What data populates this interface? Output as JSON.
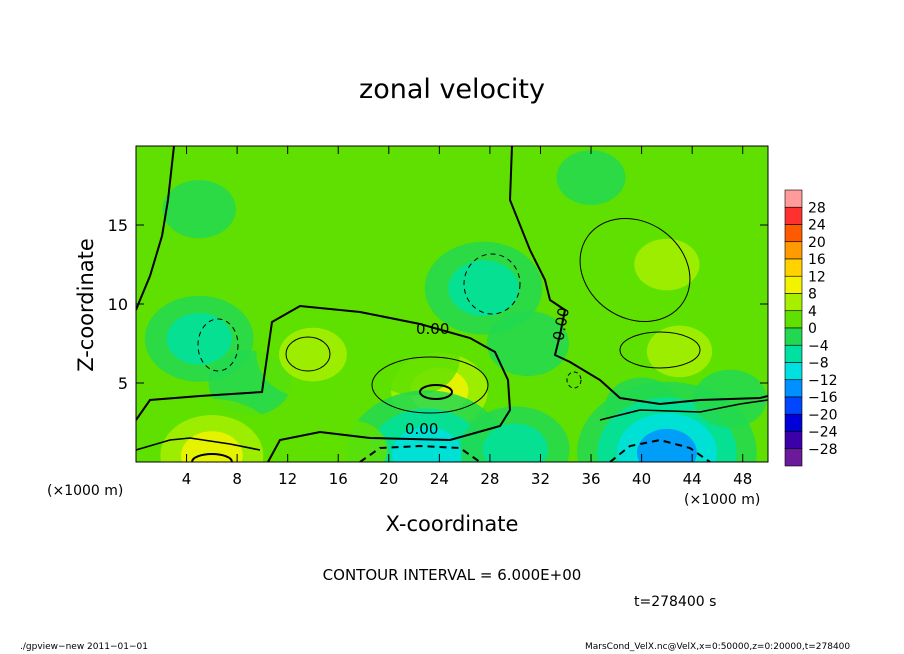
{
  "chart_data": {
    "type": "heatmap",
    "title": "zonal velocity",
    "xlabel": "X-coordinate",
    "ylabel": "Z-coordinate",
    "x_multiplier_left": "(×1000 m)",
    "x_multiplier_right": "(×1000 m)",
    "xlim": [
      0,
      50
    ],
    "ylim": [
      0,
      20
    ],
    "x_ticks": [
      "4",
      "8",
      "12",
      "16",
      "20",
      "24",
      "28",
      "32",
      "36",
      "40",
      "44",
      "48"
    ],
    "y_ticks": [
      "5",
      "10",
      "15"
    ],
    "colorbar_levels": [
      "28",
      "24",
      "20",
      "16",
      "12",
      "8",
      "4",
      "0",
      "−4",
      "−8",
      "−12",
      "−16",
      "−20",
      "−24",
      "−28"
    ],
    "colorbar_colors": [
      "#ff9b9b",
      "#ff3030",
      "#ff5a00",
      "#ff9a00",
      "#ffd200",
      "#f3f300",
      "#a8ee00",
      "#5fe000",
      "#22d850",
      "#00e0a0",
      "#00e0e0",
      "#0090ff",
      "#0046ff",
      "#0000d8",
      "#3c00a8",
      "#6a1a9a"
    ],
    "contour_labels": [
      "0.00",
      "0.00",
      "0.00"
    ],
    "contour_interval": "6.000E+00",
    "blobs": [
      {
        "x": 5,
        "z": 16,
        "v": -2
      },
      {
        "x": 5,
        "z": 7.8,
        "v": -6
      },
      {
        "x": 9,
        "z": 5,
        "v": -3
      },
      {
        "x": 14,
        "z": 6.8,
        "v": 6.5
      },
      {
        "x": 24,
        "z": 4.5,
        "v": 9
      },
      {
        "x": 22,
        "z": 6.5,
        "v": 4
      },
      {
        "x": 27.5,
        "z": 11,
        "v": -7
      },
      {
        "x": 31,
        "z": 7.5,
        "v": -3
      },
      {
        "x": 42,
        "z": 12.5,
        "v": 6
      },
      {
        "x": 43,
        "z": 7,
        "v": 6
      },
      {
        "x": 40,
        "z": 3.5,
        "v": -2
      },
      {
        "x": 6,
        "z": 0.4,
        "v": 10
      },
      {
        "x": 23,
        "z": 0.5,
        "v": -12
      },
      {
        "x": 30,
        "z": 0.8,
        "v": -6
      },
      {
        "x": 42,
        "z": 0.6,
        "v": -14
      },
      {
        "x": 17,
        "z": 0.8,
        "v": 2
      },
      {
        "x": 47,
        "z": 4,
        "v": -2
      },
      {
        "x": 36,
        "z": 18,
        "v": -1.5
      }
    ]
  },
  "contour_interval_text": "CONTOUR INTERVAL = 6.000E+00",
  "time_label": "t=278400 s",
  "footer_left": "./gpview−new  2011−01−01",
  "footer_right": "MarsCond_VelX.nc@VelX,x=0:50000,z=0:20000,t=278400"
}
